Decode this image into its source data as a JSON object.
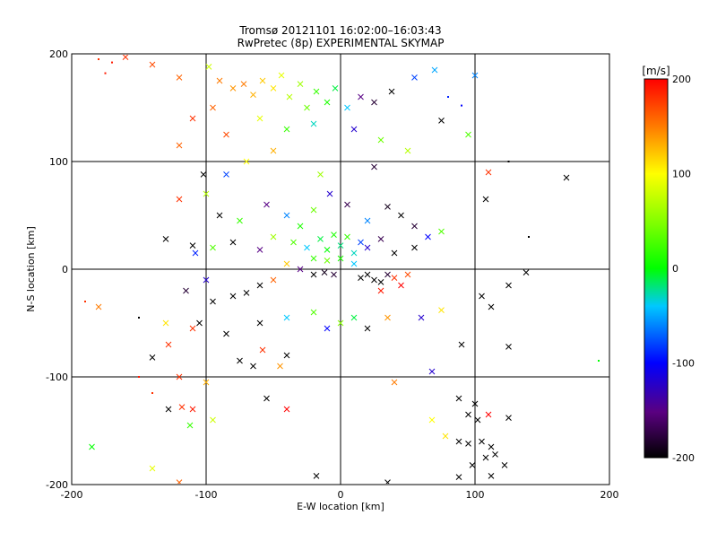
{
  "chart_data": {
    "type": "scatter",
    "title": "Tromsø 20121101 16:02:00–16:03:43",
    "subtitle": "RwPretec (8p) EXPERIMENTAL SKYMAP",
    "xlabel": "E-W location [km]",
    "ylabel": "N-S location [km]",
    "xlim": [
      -200,
      200
    ],
    "ylim": [
      -200,
      200
    ],
    "xticks": [
      -200,
      -100,
      0,
      100,
      200
    ],
    "yticks": [
      -200,
      -100,
      0,
      100,
      200
    ],
    "grid": true,
    "colorbar": {
      "label": "[m/s]",
      "min": -200,
      "max": 200,
      "ticks": [
        200,
        100,
        0,
        -100,
        -200
      ]
    },
    "points": [
      {
        "x": -160,
        "y": 197,
        "v": 180,
        "m": "x"
      },
      {
        "x": -140,
        "y": 190,
        "v": 170,
        "m": "x"
      },
      {
        "x": -175,
        "y": 182,
        "v": 190,
        "m": "dot"
      },
      {
        "x": -120,
        "y": 178,
        "v": 160,
        "m": "x"
      },
      {
        "x": -98,
        "y": 188,
        "v": 80,
        "m": "x"
      },
      {
        "x": -90,
        "y": 175,
        "v": 150,
        "m": "x"
      },
      {
        "x": -80,
        "y": 168,
        "v": 140,
        "m": "x"
      },
      {
        "x": -72,
        "y": 172,
        "v": 150,
        "m": "x"
      },
      {
        "x": -65,
        "y": 162,
        "v": 130,
        "m": "x"
      },
      {
        "x": -58,
        "y": 175,
        "v": 120,
        "m": "x"
      },
      {
        "x": -50,
        "y": 168,
        "v": 110,
        "m": "x"
      },
      {
        "x": -44,
        "y": 180,
        "v": 90,
        "m": "x"
      },
      {
        "x": -38,
        "y": 160,
        "v": 70,
        "m": "x"
      },
      {
        "x": -30,
        "y": 172,
        "v": 60,
        "m": "x"
      },
      {
        "x": -25,
        "y": 150,
        "v": 40,
        "m": "x"
      },
      {
        "x": -18,
        "y": 165,
        "v": 20,
        "m": "x"
      },
      {
        "x": -10,
        "y": 155,
        "v": 10,
        "m": "x"
      },
      {
        "x": -4,
        "y": 168,
        "v": -10,
        "m": "x"
      },
      {
        "x": 5,
        "y": 150,
        "v": -40,
        "m": "x"
      },
      {
        "x": 15,
        "y": 160,
        "v": -150,
        "m": "x"
      },
      {
        "x": 25,
        "y": 155,
        "v": -180,
        "m": "x"
      },
      {
        "x": 38,
        "y": 165,
        "v": -200,
        "m": "x"
      },
      {
        "x": 55,
        "y": 178,
        "v": -80,
        "m": "x"
      },
      {
        "x": 70,
        "y": 185,
        "v": -50,
        "m": "x"
      },
      {
        "x": 80,
        "y": 160,
        "v": -90,
        "m": "dot"
      },
      {
        "x": 90,
        "y": 152,
        "v": -100,
        "m": "dot"
      },
      {
        "x": 100,
        "y": 180,
        "v": -60,
        "m": "x"
      },
      {
        "x": -110,
        "y": 140,
        "v": 180,
        "m": "x"
      },
      {
        "x": -95,
        "y": 150,
        "v": 160,
        "m": "x"
      },
      {
        "x": -85,
        "y": 125,
        "v": 170,
        "m": "x"
      },
      {
        "x": -60,
        "y": 140,
        "v": 90,
        "m": "x"
      },
      {
        "x": -40,
        "y": 130,
        "v": 20,
        "m": "x"
      },
      {
        "x": -20,
        "y": 135,
        "v": -30,
        "m": "x"
      },
      {
        "x": 10,
        "y": 130,
        "v": -120,
        "m": "x"
      },
      {
        "x": 30,
        "y": 120,
        "v": 40,
        "m": "x"
      },
      {
        "x": 50,
        "y": 110,
        "v": 70,
        "m": "x"
      },
      {
        "x": 75,
        "y": 138,
        "v": -200,
        "m": "x"
      },
      {
        "x": 95,
        "y": 125,
        "v": 30,
        "m": "x"
      },
      {
        "x": 125,
        "y": 100,
        "v": -200,
        "m": "dot"
      },
      {
        "x": -120,
        "y": 115,
        "v": 160,
        "m": "x"
      },
      {
        "x": -70,
        "y": 100,
        "v": 100,
        "m": "x"
      },
      {
        "x": -50,
        "y": 110,
        "v": 130,
        "m": "x"
      },
      {
        "x": -15,
        "y": 88,
        "v": 60,
        "m": "x"
      },
      {
        "x": 25,
        "y": 95,
        "v": -180,
        "m": "x"
      },
      {
        "x": 110,
        "y": 90,
        "v": 180,
        "m": "x"
      },
      {
        "x": 168,
        "y": 85,
        "v": -200,
        "m": "x"
      },
      {
        "x": -102,
        "y": 88,
        "v": -200,
        "m": "x"
      },
      {
        "x": -85,
        "y": 88,
        "v": -80,
        "m": "x"
      },
      {
        "x": -120,
        "y": 65,
        "v": 180,
        "m": "x"
      },
      {
        "x": -100,
        "y": 70,
        "v": 70,
        "m": "x"
      },
      {
        "x": -90,
        "y": 50,
        "v": -200,
        "m": "x"
      },
      {
        "x": -75,
        "y": 45,
        "v": 20,
        "m": "x"
      },
      {
        "x": -55,
        "y": 60,
        "v": -150,
        "m": "x"
      },
      {
        "x": -40,
        "y": 50,
        "v": -60,
        "m": "x"
      },
      {
        "x": -30,
        "y": 40,
        "v": 10,
        "m": "x"
      },
      {
        "x": -20,
        "y": 55,
        "v": 40,
        "m": "x"
      },
      {
        "x": -8,
        "y": 70,
        "v": -120,
        "m": "x"
      },
      {
        "x": 5,
        "y": 60,
        "v": -170,
        "m": "x"
      },
      {
        "x": 20,
        "y": 45,
        "v": -60,
        "m": "x"
      },
      {
        "x": 35,
        "y": 58,
        "v": -190,
        "m": "x"
      },
      {
        "x": 45,
        "y": 50,
        "v": -200,
        "m": "x"
      },
      {
        "x": 55,
        "y": 40,
        "v": -180,
        "m": "x"
      },
      {
        "x": 75,
        "y": 35,
        "v": 30,
        "m": "x"
      },
      {
        "x": 108,
        "y": 65,
        "v": -200,
        "m": "x"
      },
      {
        "x": 140,
        "y": 30,
        "v": -200,
        "m": "dot"
      },
      {
        "x": -130,
        "y": 28,
        "v": -200,
        "m": "x"
      },
      {
        "x": -110,
        "y": 22,
        "v": -200,
        "m": "x"
      },
      {
        "x": -108,
        "y": 15,
        "v": -90,
        "m": "x"
      },
      {
        "x": -95,
        "y": 20,
        "v": 30,
        "m": "x"
      },
      {
        "x": -80,
        "y": 25,
        "v": -200,
        "m": "x"
      },
      {
        "x": -60,
        "y": 18,
        "v": -150,
        "m": "x"
      },
      {
        "x": -50,
        "y": 30,
        "v": 60,
        "m": "x"
      },
      {
        "x": -35,
        "y": 25,
        "v": 30,
        "m": "x"
      },
      {
        "x": -25,
        "y": 20,
        "v": -40,
        "m": "x"
      },
      {
        "x": -15,
        "y": 28,
        "v": -10,
        "m": "x"
      },
      {
        "x": -10,
        "y": 18,
        "v": 0,
        "m": "x"
      },
      {
        "x": -5,
        "y": 32,
        "v": 10,
        "m": "x"
      },
      {
        "x": 0,
        "y": 22,
        "v": -20,
        "m": "x"
      },
      {
        "x": 5,
        "y": 30,
        "v": 20,
        "m": "x"
      },
      {
        "x": 10,
        "y": 15,
        "v": -30,
        "m": "x"
      },
      {
        "x": 15,
        "y": 25,
        "v": -80,
        "m": "x"
      },
      {
        "x": 20,
        "y": 20,
        "v": -120,
        "m": "x"
      },
      {
        "x": 30,
        "y": 28,
        "v": -170,
        "m": "x"
      },
      {
        "x": 40,
        "y": 15,
        "v": -200,
        "m": "x"
      },
      {
        "x": 55,
        "y": 20,
        "v": -200,
        "m": "x"
      },
      {
        "x": 65,
        "y": 30,
        "v": -100,
        "m": "x"
      },
      {
        "x": -20,
        "y": 10,
        "v": 20,
        "m": "x"
      },
      {
        "x": -10,
        "y": 8,
        "v": 40,
        "m": "x"
      },
      {
        "x": 0,
        "y": 10,
        "v": 10,
        "m": "x"
      },
      {
        "x": 10,
        "y": 5,
        "v": -40,
        "m": "x"
      },
      {
        "x": -40,
        "y": 5,
        "v": 120,
        "m": "x"
      },
      {
        "x": -30,
        "y": 0,
        "v": -150,
        "m": "x"
      },
      {
        "x": -20,
        "y": -5,
        "v": -200,
        "m": "x"
      },
      {
        "x": -12,
        "y": -3,
        "v": -190,
        "m": "x"
      },
      {
        "x": -5,
        "y": -5,
        "v": -180,
        "m": "x"
      },
      {
        "x": 15,
        "y": -8,
        "v": -200,
        "m": "x"
      },
      {
        "x": 20,
        "y": -5,
        "v": -200,
        "m": "x"
      },
      {
        "x": 25,
        "y": -10,
        "v": -200,
        "m": "x"
      },
      {
        "x": 30,
        "y": -12,
        "v": -200,
        "m": "x"
      },
      {
        "x": 35,
        "y": -5,
        "v": -180,
        "m": "x"
      },
      {
        "x": 40,
        "y": -8,
        "v": 180,
        "m": "x"
      },
      {
        "x": 45,
        "y": -15,
        "v": 200,
        "m": "x"
      },
      {
        "x": 50,
        "y": -5,
        "v": 170,
        "m": "x"
      },
      {
        "x": 30,
        "y": -20,
        "v": 190,
        "m": "x"
      },
      {
        "x": -50,
        "y": -10,
        "v": 160,
        "m": "x"
      },
      {
        "x": -60,
        "y": -15,
        "v": -200,
        "m": "x"
      },
      {
        "x": -70,
        "y": -22,
        "v": -200,
        "m": "x"
      },
      {
        "x": -80,
        "y": -25,
        "v": -200,
        "m": "x"
      },
      {
        "x": -95,
        "y": -30,
        "v": -200,
        "m": "x"
      },
      {
        "x": -100,
        "y": -10,
        "v": -120,
        "m": "x"
      },
      {
        "x": -115,
        "y": -20,
        "v": -180,
        "m": "x"
      },
      {
        "x": -180,
        "y": -35,
        "v": 150,
        "m": "x"
      },
      {
        "x": -150,
        "y": -45,
        "v": -200,
        "m": "dot"
      },
      {
        "x": -130,
        "y": -50,
        "v": 110,
        "m": "x"
      },
      {
        "x": -110,
        "y": -55,
        "v": 180,
        "m": "x"
      },
      {
        "x": -105,
        "y": -50,
        "v": -200,
        "m": "x"
      },
      {
        "x": -85,
        "y": -60,
        "v": -200,
        "m": "x"
      },
      {
        "x": -60,
        "y": -50,
        "v": -200,
        "m": "x"
      },
      {
        "x": -40,
        "y": -45,
        "v": -40,
        "m": "x"
      },
      {
        "x": -20,
        "y": -40,
        "v": 30,
        "m": "x"
      },
      {
        "x": -10,
        "y": -55,
        "v": -100,
        "m": "x"
      },
      {
        "x": 0,
        "y": -50,
        "v": 50,
        "m": "x"
      },
      {
        "x": 10,
        "y": -45,
        "v": -10,
        "m": "x"
      },
      {
        "x": 20,
        "y": -55,
        "v": -200,
        "m": "x"
      },
      {
        "x": 35,
        "y": -45,
        "v": 140,
        "m": "x"
      },
      {
        "x": 60,
        "y": -45,
        "v": -120,
        "m": "x"
      },
      {
        "x": 75,
        "y": -38,
        "v": 110,
        "m": "x"
      },
      {
        "x": 105,
        "y": -25,
        "v": -200,
        "m": "x"
      },
      {
        "x": 112,
        "y": -35,
        "v": -200,
        "m": "x"
      },
      {
        "x": 125,
        "y": -15,
        "v": -200,
        "m": "x"
      },
      {
        "x": 138,
        "y": -3,
        "v": -200,
        "m": "x"
      },
      {
        "x": 90,
        "y": -70,
        "v": -200,
        "m": "x"
      },
      {
        "x": 125,
        "y": -72,
        "v": -200,
        "m": "x"
      },
      {
        "x": -75,
        "y": -85,
        "v": -200,
        "m": "x"
      },
      {
        "x": -65,
        "y": -90,
        "v": -200,
        "m": "x"
      },
      {
        "x": -58,
        "y": -75,
        "v": 180,
        "m": "x"
      },
      {
        "x": -40,
        "y": -80,
        "v": -200,
        "m": "x"
      },
      {
        "x": -140,
        "y": -82,
        "v": -200,
        "m": "x"
      },
      {
        "x": -128,
        "y": -70,
        "v": 180,
        "m": "x"
      },
      {
        "x": -120,
        "y": -100,
        "v": 180,
        "m": "x"
      },
      {
        "x": -150,
        "y": -100,
        "v": 190,
        "m": "dot"
      },
      {
        "x": -140,
        "y": -115,
        "v": 180,
        "m": "dot"
      },
      {
        "x": -128,
        "y": -130,
        "v": -200,
        "m": "x"
      },
      {
        "x": -118,
        "y": -128,
        "v": 180,
        "m": "x"
      },
      {
        "x": -110,
        "y": -130,
        "v": 190,
        "m": "x"
      },
      {
        "x": -100,
        "y": -105,
        "v": 130,
        "m": "x"
      },
      {
        "x": -95,
        "y": -140,
        "v": 80,
        "m": "x"
      },
      {
        "x": -112,
        "y": -145,
        "v": 20,
        "m": "x"
      },
      {
        "x": -185,
        "y": -165,
        "v": 0,
        "m": "x"
      },
      {
        "x": -55,
        "y": -120,
        "v": -200,
        "m": "x"
      },
      {
        "x": -40,
        "y": -130,
        "v": 200,
        "m": "x"
      },
      {
        "x": -45,
        "y": -90,
        "v": 140,
        "m": "x"
      },
      {
        "x": 68,
        "y": -95,
        "v": -120,
        "m": "x"
      },
      {
        "x": 88,
        "y": -120,
        "v": -200,
        "m": "x"
      },
      {
        "x": 95,
        "y": -135,
        "v": -200,
        "m": "x"
      },
      {
        "x": 100,
        "y": -125,
        "v": -200,
        "m": "x"
      },
      {
        "x": 102,
        "y": -140,
        "v": -200,
        "m": "x"
      },
      {
        "x": 110,
        "y": -135,
        "v": 200,
        "m": "x"
      },
      {
        "x": 125,
        "y": -138,
        "v": -200,
        "m": "x"
      },
      {
        "x": 68,
        "y": -140,
        "v": 100,
        "m": "x"
      },
      {
        "x": 40,
        "y": -105,
        "v": 150,
        "m": "x"
      },
      {
        "x": 78,
        "y": -155,
        "v": 110,
        "m": "x"
      },
      {
        "x": 88,
        "y": -160,
        "v": -200,
        "m": "x"
      },
      {
        "x": 95,
        "y": -162,
        "v": -200,
        "m": "x"
      },
      {
        "x": 105,
        "y": -160,
        "v": -200,
        "m": "x"
      },
      {
        "x": 112,
        "y": -165,
        "v": -200,
        "m": "x"
      },
      {
        "x": 115,
        "y": -172,
        "v": -200,
        "m": "x"
      },
      {
        "x": 108,
        "y": -175,
        "v": -200,
        "m": "x"
      },
      {
        "x": 98,
        "y": -182,
        "v": -200,
        "m": "x"
      },
      {
        "x": 122,
        "y": -182,
        "v": -200,
        "m": "x"
      },
      {
        "x": 112,
        "y": -192,
        "v": -200,
        "m": "x"
      },
      {
        "x": 88,
        "y": -193,
        "v": -200,
        "m": "x"
      },
      {
        "x": -120,
        "y": -198,
        "v": 160,
        "m": "x"
      },
      {
        "x": -140,
        "y": -185,
        "v": 90,
        "m": "x"
      },
      {
        "x": -18,
        "y": -192,
        "v": -200,
        "m": "x"
      },
      {
        "x": 35,
        "y": -198,
        "v": -200,
        "m": "x"
      },
      {
        "x": 192,
        "y": -85,
        "v": 0,
        "m": "dot"
      },
      {
        "x": -190,
        "y": -30,
        "v": 180,
        "m": "dot"
      },
      {
        "x": -180,
        "y": 195,
        "v": 180,
        "m": "dot"
      },
      {
        "x": -170,
        "y": 192,
        "v": 190,
        "m": "dot"
      }
    ]
  }
}
